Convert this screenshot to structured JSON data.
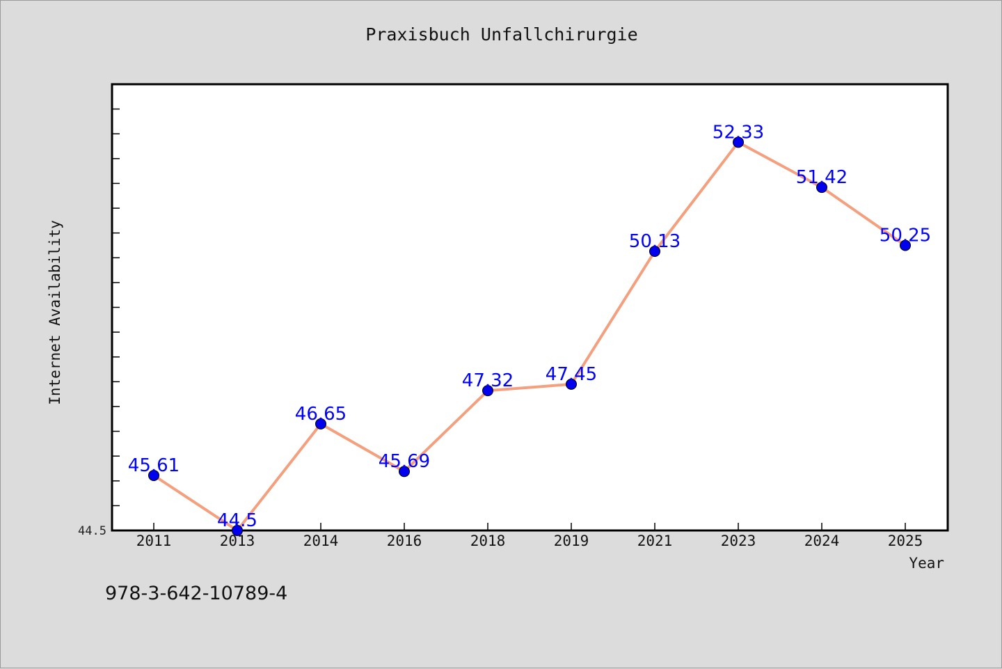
{
  "chart_data": {
    "type": "line",
    "title": "Praxisbuch Unfallchirurgie",
    "xlabel": "Year",
    "ylabel": "Internet Availability",
    "categories": [
      "2011",
      "2013",
      "2014",
      "2016",
      "2018",
      "2019",
      "2021",
      "2023",
      "2024",
      "2025"
    ],
    "series": [
      {
        "values": [
          45.61,
          44.5,
          46.65,
          45.69,
          47.32,
          47.45,
          50.13,
          52.33,
          51.42,
          50.25
        ]
      }
    ],
    "data_labels": [
      "45.61",
      "44.5",
      "46.65",
      "45.69",
      "47.32",
      "47.45",
      "50.13",
      "52.33",
      "51.42",
      "50.25"
    ],
    "y_tick_label": "44.5",
    "ylim": [
      44.5,
      53.5
    ],
    "grid": false,
    "colors": {
      "line": "#f4a07e",
      "marker": "#0000ee",
      "label": "#0000ff"
    }
  },
  "footer": {
    "isbn": "978-3-642-10789-4"
  }
}
